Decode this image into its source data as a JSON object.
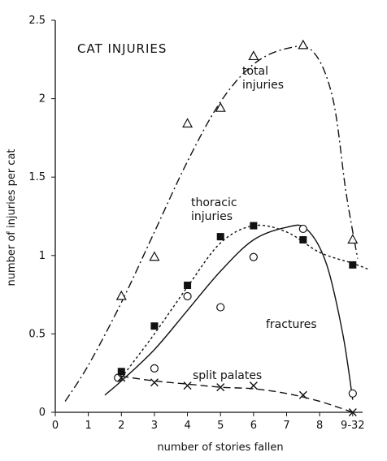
{
  "chart_data": {
    "type": "scatter",
    "title": "CAT INJURIES",
    "x_label": "number of stories fallen",
    "y_label": "number of injuries per cat",
    "xlim": [
      0,
      9.3
    ],
    "ylim": [
      0,
      2.5
    ],
    "xticks": [
      0,
      1,
      2,
      3,
      4,
      5,
      6,
      7,
      8,
      {
        "value": 9,
        "label": "9-32"
      }
    ],
    "yticks": [
      0,
      0.5,
      1.0,
      1.5,
      2.0,
      2.5
    ],
    "grid": false,
    "series": [
      {
        "name": "total injuries",
        "color": "#111111",
        "marker": "triangle",
        "line": "dashdot",
        "x": [
          2,
          3,
          4,
          5,
          6,
          7.5,
          9
        ],
        "values": [
          0.74,
          0.99,
          1.84,
          1.94,
          2.27,
          2.34,
          1.1
        ],
        "fit_x": [
          0.3,
          1,
          2,
          3,
          4,
          5,
          6,
          7,
          7.8,
          8.4,
          8.8,
          9.15
        ],
        "fit_values": [
          0.07,
          0.3,
          0.7,
          1.15,
          1.6,
          1.98,
          2.22,
          2.32,
          2.3,
          2.0,
          1.4,
          0.98
        ]
      },
      {
        "name": "thoracic injuries",
        "color": "#111111",
        "marker": "square",
        "line": "dotted",
        "x": [
          2,
          3,
          4,
          5,
          6,
          7.5,
          9
        ],
        "values": [
          0.26,
          0.55,
          0.81,
          1.12,
          1.19,
          1.1,
          0.94
        ],
        "fit_x": [
          2,
          3,
          4,
          5,
          6,
          7,
          8,
          9,
          9.5
        ],
        "fit_values": [
          0.22,
          0.5,
          0.8,
          1.08,
          1.19,
          1.15,
          1.02,
          0.95,
          0.91
        ]
      },
      {
        "name": "fractures",
        "color": "#111111",
        "marker": "circle",
        "line": "solid",
        "x": [
          1.9,
          3,
          4,
          5,
          6,
          7.5,
          9
        ],
        "values": [
          0.22,
          0.28,
          0.74,
          0.67,
          0.99,
          1.17,
          0.12
        ],
        "fit_x": [
          1.5,
          2,
          3,
          4,
          5,
          6,
          7,
          7.6,
          8.2,
          8.7,
          9
        ],
        "fit_values": [
          0.11,
          0.2,
          0.4,
          0.65,
          0.9,
          1.1,
          1.18,
          1.17,
          0.95,
          0.5,
          0.08
        ]
      },
      {
        "name": "split palates",
        "color": "#111111",
        "marker": "cross",
        "line": "dashed",
        "x": [
          2,
          3,
          4,
          5,
          6,
          7.5,
          9
        ],
        "values": [
          0.22,
          0.19,
          0.17,
          0.16,
          0.17,
          0.11,
          0
        ],
        "fit_x": [
          2,
          3,
          4,
          5,
          6,
          7,
          8,
          9
        ],
        "fit_values": [
          0.23,
          0.2,
          0.18,
          0.16,
          0.15,
          0.12,
          0.07,
          0
        ]
      }
    ]
  }
}
